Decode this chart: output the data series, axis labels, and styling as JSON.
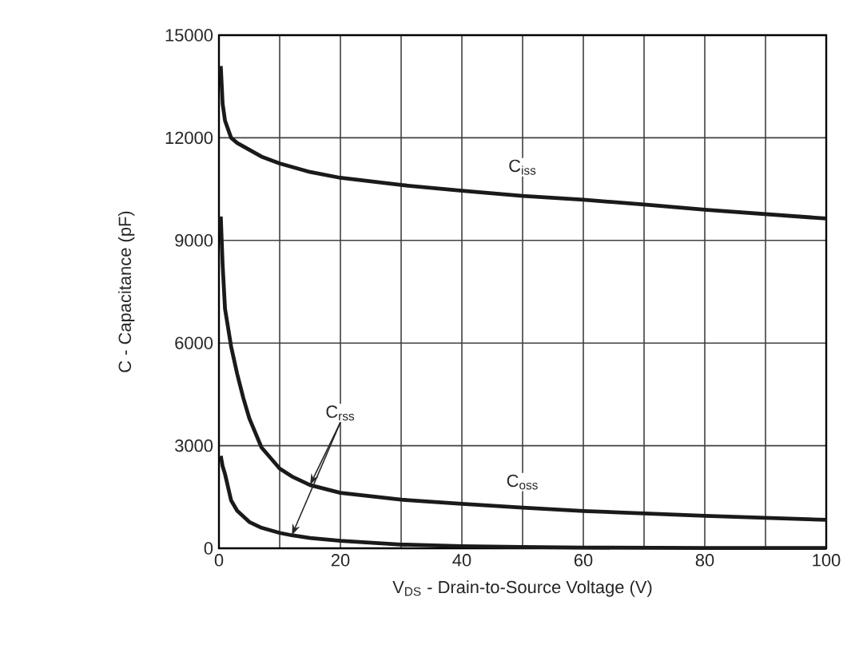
{
  "chart_data": {
    "type": "line",
    "xlabel": "V$_{DS}$ - Drain-to-Source Voltage (V)",
    "ylabel": "C - Capacitance (pF)",
    "series": [
      {
        "name": "C$_{iss}$",
        "color": "#1a1a1a",
        "x": [
          0.3,
          0.6,
          1,
          2,
          3,
          5,
          7,
          10,
          15,
          20,
          30,
          40,
          50,
          60,
          70,
          80,
          90,
          100
        ],
        "values": [
          14100,
          13000,
          12500,
          12000,
          11850,
          11650,
          11450,
          11250,
          11000,
          10830,
          10620,
          10450,
          10300,
          10190,
          10050,
          9900,
          9770,
          9640
        ]
      },
      {
        "name": "C$_{oss}$",
        "color": "#1a1a1a",
        "x": [
          0.3,
          0.6,
          1,
          2,
          3,
          4,
          5,
          7,
          10,
          12,
          15,
          20,
          30,
          40,
          50,
          60,
          70,
          80,
          90,
          100
        ],
        "values": [
          9700,
          8300,
          7000,
          5900,
          5100,
          4400,
          3800,
          2950,
          2330,
          2100,
          1850,
          1620,
          1420,
          1300,
          1190,
          1090,
          1020,
          950,
          890,
          830
        ]
      },
      {
        "name": "C$_{rss}$",
        "color": "#1a1a1a",
        "x": [
          0.3,
          0.6,
          1,
          2,
          3,
          5,
          7,
          10,
          12,
          15,
          20,
          30,
          40,
          50,
          60,
          80,
          100
        ],
        "values": [
          2700,
          2400,
          2170,
          1400,
          1100,
          770,
          600,
          450,
          380,
          300,
          220,
          110,
          60,
          40,
          20,
          10,
          10
        ]
      }
    ],
    "xlim": [
      0,
      100
    ],
    "ylim": [
      0,
      15000
    ],
    "xticks": [
      0,
      {
        "value": 10,
        "label": null
      },
      20,
      {
        "value": 30,
        "label": null
      },
      40,
      {
        "value": 50,
        "label": null
      },
      60,
      {
        "value": 70,
        "label": null
      },
      80,
      {
        "value": 90,
        "label": null
      },
      100
    ],
    "yticks": [
      0,
      3000,
      6000,
      9000,
      12000,
      15000
    ],
    "grid": true,
    "legend": false,
    "marker": "none",
    "line_style": "solid"
  }
}
